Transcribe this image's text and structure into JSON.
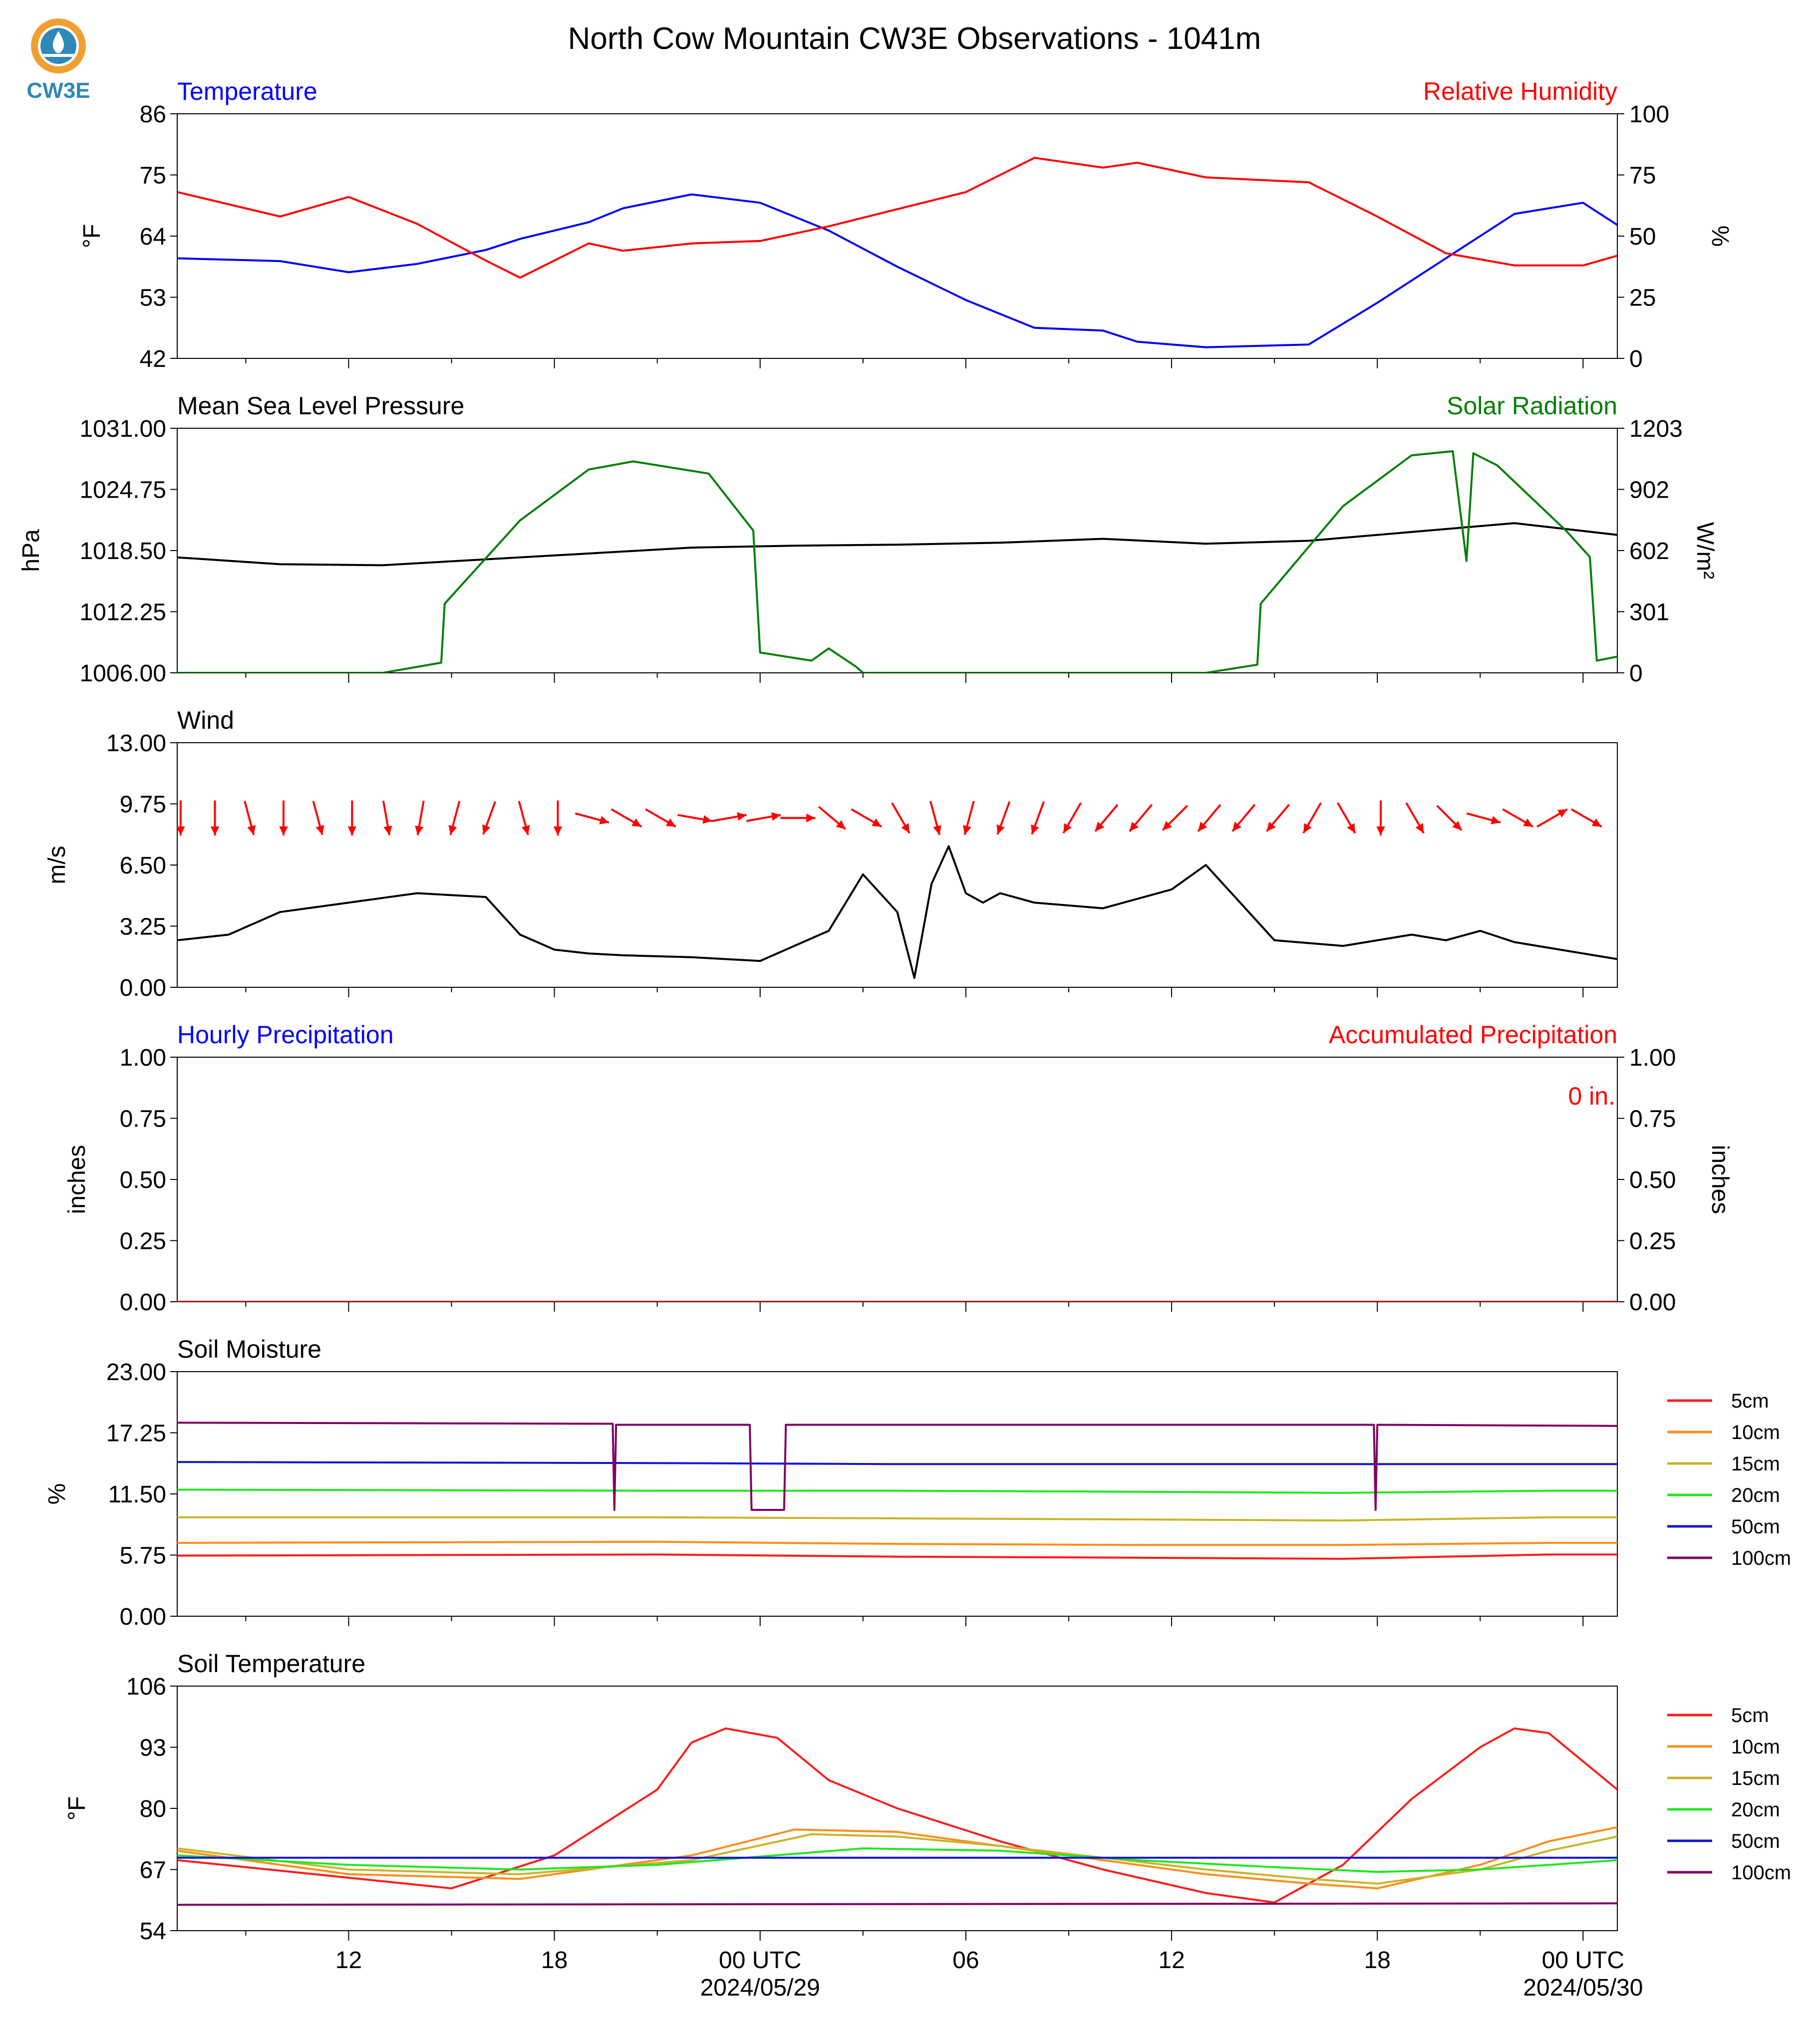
{
  "title": "North Cow Mountain CW3E Observations - 1041m",
  "logo": {
    "text": "CW3E",
    "colors": {
      "ring": "#f0a030",
      "drop": "#3a8fc0",
      "text": "#2f88b8"
    }
  },
  "colors": {
    "blue": "#0000ff",
    "red": "#ff0000",
    "green": "#007f00",
    "black": "#000000"
  },
  "time_axis": {
    "tick_labels": [
      "12",
      "18",
      "00 UTC",
      "06",
      "12",
      "18",
      "00 UTC"
    ],
    "date_labels": [
      "2024/05/29",
      "2024/05/30"
    ]
  },
  "legend": {
    "entries": [
      {
        "label": "5cm",
        "color": "#ff1a1a"
      },
      {
        "label": "10cm",
        "color": "#ff8c1a"
      },
      {
        "label": "15cm",
        "color": "#c8b428"
      },
      {
        "label": "20cm",
        "color": "#22e622"
      },
      {
        "label": "50cm",
        "color": "#1414d8"
      },
      {
        "label": "100cm",
        "color": "#800060"
      }
    ]
  },
  "chart_data": [
    {
      "type": "line",
      "left_title": "Temperature",
      "right_title": "Relative Humidity",
      "ylabel": "°F",
      "y2label": "%",
      "ylim": [
        42,
        86
      ],
      "y2lim": [
        0,
        100
      ],
      "yticks": [
        "42",
        "53",
        "64",
        "75",
        "86"
      ],
      "y2ticks": [
        "0",
        "25",
        "50",
        "75",
        "100"
      ],
      "x_hours_since_2024-05-28T07UTC": [
        0,
        3,
        5,
        7,
        9,
        10,
        12,
        13,
        15,
        17,
        19,
        21,
        23,
        25,
        27,
        28,
        30,
        33,
        35,
        37,
        39,
        41,
        42
      ],
      "series": [
        {
          "name": "Temperature",
          "axis": "left",
          "color": "#0000ff",
          "values": [
            60,
            59.5,
            57.5,
            59,
            61.5,
            63.5,
            66.5,
            69,
            71.5,
            70,
            65,
            58.5,
            52.5,
            47.5,
            47,
            45,
            44,
            44.5,
            52,
            60,
            68,
            70,
            66
          ]
        },
        {
          "name": "Relative Humidity",
          "axis": "left2",
          "color": "#ff0000",
          "values": [
            68,
            58,
            66,
            55,
            40,
            33,
            47,
            44,
            47,
            48,
            54,
            61,
            68,
            82,
            78,
            80,
            74,
            72,
            58,
            43,
            38,
            38,
            42
          ]
        }
      ]
    },
    {
      "type": "line",
      "left_title": "Mean Sea Level Pressure",
      "right_title": "Solar Radiation",
      "ylabel": "hPa",
      "y2label": "W/m²",
      "ylim": [
        1006.0,
        1031.0
      ],
      "y2lim": [
        0,
        1203
      ],
      "yticks": [
        "1006.00",
        "1012.25",
        "1018.50",
        "1024.75",
        "1031.00"
      ],
      "y2ticks": [
        "0",
        "301",
        "602",
        "902",
        "1203"
      ],
      "series": [
        {
          "name": "Mean Sea Level Pressure",
          "axis": "left",
          "color": "#000000",
          "x": [
            0,
            3,
            6,
            9,
            12,
            15,
            18,
            21,
            24,
            27,
            30,
            33,
            36,
            39,
            42
          ],
          "values": [
            1017.8,
            1017.1,
            1017.0,
            1017.6,
            1018.2,
            1018.8,
            1019.0,
            1019.1,
            1019.3,
            1019.7,
            1019.2,
            1019.5,
            1020.4,
            1021.3,
            1020.1
          ]
        },
        {
          "name": "Solar Radiation",
          "axis": "right",
          "color": "#007f00",
          "x": [
            0,
            6,
            7.7,
            7.8,
            10,
            12,
            13.3,
            15.5,
            16.8,
            17,
            18.5,
            19,
            19.8,
            20,
            30,
            31.5,
            31.6,
            34,
            36,
            37.2,
            37.6,
            37.8,
            38.5,
            40.5,
            41.2,
            41.4,
            42
          ],
          "values": [
            0,
            0,
            50,
            340,
            750,
            1000,
            1040,
            980,
            700,
            100,
            60,
            120,
            30,
            0,
            0,
            40,
            340,
            820,
            1070,
            1090,
            550,
            1080,
            1020,
            700,
            570,
            60,
            80
          ]
        }
      ]
    },
    {
      "type": "line",
      "left_title": "Wind",
      "ylabel": "m/s",
      "ylim": [
        0.0,
        13.0
      ],
      "yticks": [
        "0.00",
        "3.25",
        "6.50",
        "9.75",
        "13.00"
      ],
      "series": [
        {
          "name": "Wind",
          "axis": "left",
          "color": "#000000",
          "x": [
            0,
            1.5,
            3,
            5,
            7,
            9,
            10,
            11,
            12,
            13,
            15,
            17,
            19,
            20,
            21,
            21.5,
            22,
            22.5,
            23,
            23.5,
            24,
            25,
            27,
            29,
            30,
            32,
            34,
            36,
            37,
            38,
            39,
            41,
            42
          ],
          "values": [
            2.5,
            2.8,
            4.0,
            4.5,
            5.0,
            4.8,
            2.8,
            2.0,
            1.8,
            1.7,
            1.6,
            1.4,
            3.0,
            6.0,
            4.0,
            0.5,
            5.5,
            7.5,
            5.0,
            4.5,
            5.0,
            4.5,
            4.2,
            5.2,
            6.5,
            2.5,
            2.2,
            2.8,
            2.5,
            3.0,
            2.4,
            1.8,
            1.5
          ]
        }
      ],
      "wind_arrow_directions_deg_from": [
        0,
        0,
        345,
        0,
        345,
        0,
        350,
        10,
        15,
        20,
        345,
        0,
        285,
        300,
        300,
        280,
        260,
        260,
        270,
        310,
        300,
        330,
        345,
        15,
        20,
        20,
        30,
        40,
        40,
        45,
        40,
        40,
        40,
        30,
        330,
        0,
        330,
        315,
        285,
        300,
        240,
        300
      ]
    },
    {
      "type": "line",
      "left_title": "Hourly Precipitation",
      "right_title": "Accumulated Precipitation",
      "annotation": "0 in.",
      "ylabel": "inches",
      "y2label": "inches",
      "ylim": [
        0.0,
        1.0
      ],
      "y2lim": [
        0.0,
        1.0
      ],
      "yticks": [
        "0.00",
        "0.25",
        "0.50",
        "0.75",
        "1.00"
      ],
      "y2ticks": [
        "0.00",
        "0.25",
        "0.50",
        "0.75",
        "1.00"
      ],
      "series": [
        {
          "name": "Hourly Precipitation",
          "axis": "left",
          "color": "#0000ff",
          "x": [
            0,
            42
          ],
          "values": [
            0,
            0
          ]
        },
        {
          "name": "Accumulated Precipitation",
          "axis": "right",
          "color": "#ff0000",
          "x": [
            0,
            42
          ],
          "values": [
            0,
            0
          ]
        }
      ]
    },
    {
      "type": "line",
      "left_title": "Soil Moisture",
      "ylabel": "%",
      "ylim": [
        0.0,
        23.0
      ],
      "yticks": [
        "0.00",
        "5.75",
        "11.50",
        "17.25",
        "23.00"
      ],
      "series": [
        {
          "name": "5cm",
          "color": "#ff1a1a",
          "x": [
            0,
            14,
            21,
            28,
            34,
            40,
            42
          ],
          "values": [
            5.7,
            5.8,
            5.6,
            5.5,
            5.4,
            5.8,
            5.8
          ]
        },
        {
          "name": "10cm",
          "color": "#ff8c1a",
          "x": [
            0,
            14,
            21,
            28,
            34,
            40,
            42
          ],
          "values": [
            6.9,
            7.0,
            6.8,
            6.7,
            6.7,
            6.9,
            6.9
          ]
        },
        {
          "name": "15cm",
          "color": "#c8b428",
          "x": [
            0,
            14,
            21,
            28,
            34,
            40,
            42
          ],
          "values": [
            9.3,
            9.3,
            9.2,
            9.1,
            9.0,
            9.3,
            9.3
          ]
        },
        {
          "name": "20cm",
          "color": "#22e622",
          "x": [
            0,
            14,
            21,
            28,
            34,
            40,
            42
          ],
          "values": [
            11.9,
            11.8,
            11.8,
            11.7,
            11.6,
            11.8,
            11.8
          ]
        },
        {
          "name": "50cm",
          "color": "#1414d8",
          "x": [
            0,
            14,
            21,
            28,
            34,
            40,
            42
          ],
          "values": [
            14.5,
            14.4,
            14.3,
            14.3,
            14.3,
            14.3,
            14.3
          ]
        },
        {
          "name": "100cm",
          "color": "#800060",
          "x": [
            0,
            12.7,
            12.75,
            12.8,
            16.7,
            16.75,
            17.7,
            17.75,
            34.9,
            34.95,
            35.0,
            42
          ],
          "values": [
            18.2,
            18.1,
            10.0,
            18.0,
            18.0,
            10.0,
            10.0,
            18.0,
            18.0,
            10.0,
            18.0,
            17.9
          ]
        }
      ]
    },
    {
      "type": "line",
      "left_title": "Soil Temperature",
      "ylabel": "°F",
      "ylim": [
        54,
        106
      ],
      "yticks": [
        "54",
        "67",
        "80",
        "93",
        "106"
      ],
      "series": [
        {
          "name": "5cm",
          "color": "#ff1a1a",
          "x": [
            0,
            4,
            8,
            11,
            14,
            15,
            16,
            17.5,
            19,
            21,
            24,
            27,
            30,
            32,
            34,
            36,
            38,
            39,
            40,
            41,
            42
          ],
          "values": [
            69,
            66,
            63,
            70,
            84,
            94,
            97,
            95,
            86,
            80,
            73,
            67,
            62,
            60,
            68,
            82,
            93,
            97,
            96,
            90,
            84
          ]
        },
        {
          "name": "10cm",
          "color": "#ff8c1a",
          "x": [
            0,
            5,
            10,
            15,
            18,
            21,
            24,
            27,
            30,
            33,
            35,
            38,
            40,
            42
          ],
          "values": [
            71,
            66,
            65,
            70,
            75.5,
            75,
            72,
            69,
            66,
            64,
            63,
            68,
            73,
            76
          ]
        },
        {
          "name": "15cm",
          "color": "#c8b428",
          "x": [
            0,
            5,
            10,
            15,
            18.5,
            21,
            24,
            27,
            30,
            33,
            35,
            38,
            40,
            42
          ],
          "values": [
            71.5,
            67,
            66,
            69,
            74.5,
            74,
            72,
            69.5,
            67,
            65,
            64,
            67,
            71,
            74
          ]
        },
        {
          "name": "20cm",
          "color": "#22e622",
          "x": [
            0,
            5,
            10,
            14,
            20,
            24,
            28,
            32,
            35,
            38,
            42
          ],
          "values": [
            70,
            68,
            67,
            68,
            71.5,
            71,
            69,
            67.5,
            66.5,
            67,
            69
          ]
        },
        {
          "name": "50cm",
          "color": "#1414d8",
          "x": [
            0,
            12,
            24,
            33,
            42
          ],
          "values": [
            69.5,
            69.5,
            69.5,
            69.5,
            69.5
          ]
        },
        {
          "name": "100cm",
          "color": "#800060",
          "x": [
            0,
            42
          ],
          "values": [
            59.5,
            59.8
          ]
        }
      ]
    }
  ]
}
